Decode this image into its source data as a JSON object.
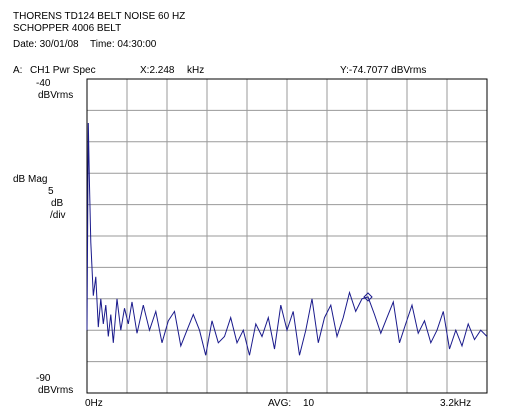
{
  "header": {
    "title_line1": "THORENS TD124 BELT NOISE 60 HZ",
    "title_line2": "SCHOPPER 4006 BELT",
    "date_label": "Date: 30/01/08",
    "time_label": "Time: 04:30:00"
  },
  "readout": {
    "trace": "A:",
    "measurement": "CH1 Pwr Spec",
    "x": "X:2.248",
    "x_unit": "kHz",
    "y": "Y:-74.7077 dBVrms"
  },
  "y_axis": {
    "top_value": "-40",
    "top_unit": "dBVrms",
    "mode": "dB Mag",
    "scale_value": "5",
    "scale_unit": "dB",
    "scale_per": "/div",
    "bottom_value": "-90",
    "bottom_unit": "dBVrms"
  },
  "x_axis": {
    "start": "0Hz",
    "avg_label": "AVG:",
    "avg_value": "10",
    "end": "3.2kHz"
  },
  "colors": {
    "trace": "#1a1a8c",
    "grid": "#9a9a9a",
    "frame": "#000000",
    "marker": "#1a1a8c"
  },
  "chart_data": {
    "type": "line",
    "title": "THORENS TD124 BELT NOISE 60 HZ",
    "subtitle": "SCHOPPER 4006 BELT",
    "xlabel": "",
    "ylabel": "dB Mag",
    "x_unit": "kHz",
    "y_unit": "dBVrms",
    "xlim": [
      0,
      3.2
    ],
    "ylim": [
      -90,
      -40
    ],
    "y_per_div": 5,
    "grid": true,
    "marker": {
      "x": 2.248,
      "y": -74.7077
    },
    "series": [
      {
        "x": [
          0.0,
          0.01,
          0.02,
          0.03,
          0.05,
          0.07,
          0.09,
          0.11,
          0.13,
          0.15,
          0.17,
          0.19,
          0.21,
          0.24,
          0.27,
          0.3,
          0.33,
          0.36,
          0.4,
          0.45,
          0.5,
          0.55,
          0.6,
          0.65,
          0.7,
          0.75,
          0.8,
          0.85,
          0.9,
          0.95,
          1.0,
          1.05,
          1.1,
          1.15,
          1.2,
          1.25,
          1.3,
          1.35,
          1.4,
          1.45,
          1.5,
          1.55,
          1.6,
          1.65,
          1.7,
          1.75,
          1.8,
          1.85,
          1.9,
          1.95,
          2.0,
          2.05,
          2.1,
          2.15,
          2.2,
          2.248,
          2.3,
          2.35,
          2.4,
          2.45,
          2.5,
          2.55,
          2.6,
          2.65,
          2.7,
          2.75,
          2.8,
          2.85,
          2.9,
          2.95,
          3.0,
          3.05,
          3.1,
          3.15,
          3.2
        ],
        "y": [
          -80.0,
          -47.0,
          -57.0,
          -66.0,
          -74.5,
          -71.5,
          -79.5,
          -75.0,
          -79.0,
          -76.0,
          -81.0,
          -77.5,
          -82.0,
          -75.0,
          -80.0,
          -76.5,
          -79.0,
          -75.5,
          -80.5,
          -76.0,
          -80.0,
          -77.0,
          -82.0,
          -78.5,
          -77.0,
          -82.5,
          -80.0,
          -77.5,
          -80.0,
          -84.0,
          -78.5,
          -82.0,
          -81.0,
          -78.0,
          -82.0,
          -80.0,
          -84.0,
          -79.0,
          -81.0,
          -78.0,
          -83.0,
          -76.0,
          -80.0,
          -77.0,
          -84.0,
          -80.0,
          -75.0,
          -82.0,
          -78.0,
          -76.0,
          -81.0,
          -78.0,
          -74.0,
          -77.0,
          -75.0,
          -74.7,
          -77.5,
          -80.5,
          -78.0,
          -75.5,
          -82.0,
          -79.0,
          -76.0,
          -80.5,
          -78.5,
          -82.0,
          -80.0,
          -77.0,
          -83.0,
          -80.0,
          -82.5,
          -79.0,
          -81.5,
          -80.0,
          -81.0
        ]
      }
    ]
  }
}
